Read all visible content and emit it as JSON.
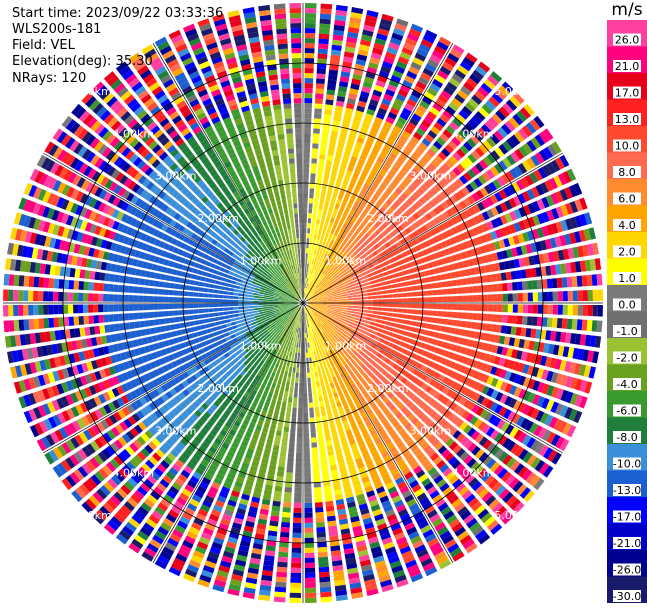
{
  "header": {
    "start_time": "Start time: 2023/09/22 03:33:36",
    "instrument": "WLS200s-181",
    "field": "Field: VEL",
    "elevation": "Elevation(deg): 35.30",
    "nrays": "NRays: 120"
  },
  "colorbar": {
    "unit": "m/s",
    "labels": [
      "26.0",
      "21.0",
      "17.0",
      "13.0",
      "10.0",
      "8.0",
      "6.0",
      "4.0",
      "2.0",
      "1.0",
      "0.0",
      "-1.0",
      "-2.0",
      "-4.0",
      "-6.0",
      "-8.0",
      "-10.0",
      "-13.0",
      "-17.0",
      "-21.0",
      "-26.0",
      "-30.0"
    ],
    "colors": [
      "#ff3fa0",
      "#ff007f",
      "#e8001a",
      "#ff2020",
      "#ff4a30",
      "#ff6a50",
      "#ff8a30",
      "#ffa500",
      "#ffd700",
      "#ffff00",
      "#7a7a7a",
      "#707070",
      "#9ac232",
      "#6aa020",
      "#3a9a30",
      "#1e7e3a",
      "#3a8fd8",
      "#1c5fd0",
      "#0000ff",
      "#0000c8",
      "#000090",
      "#1a1a6a"
    ]
  },
  "chart_data": {
    "type": "ppi",
    "field": "VEL",
    "unit": "m/s",
    "nrays": 120,
    "range_rings_km": [
      1,
      2,
      3,
      4,
      5
    ],
    "range_ring_labels": [
      "1.00km",
      "2.00km",
      "3.00km",
      "4.00km",
      "5.00km"
    ],
    "max_range_km": 5.0,
    "grid": true,
    "colormap_bounds": [
      -30,
      -26,
      -21,
      -17,
      -13,
      -10,
      -8,
      -6,
      -4,
      -2,
      -1,
      0,
      1,
      2,
      4,
      6,
      8,
      10,
      13,
      17,
      21,
      26,
      30
    ],
    "velocity_pattern": {
      "description_azimuth_deg_of_max_positive": 90,
      "peak_velocity_ms": 12,
      "clean_signal_range_km": [
        0.1,
        3.3
      ],
      "noisy_range_km": [
        3.3,
        5.0
      ]
    }
  }
}
